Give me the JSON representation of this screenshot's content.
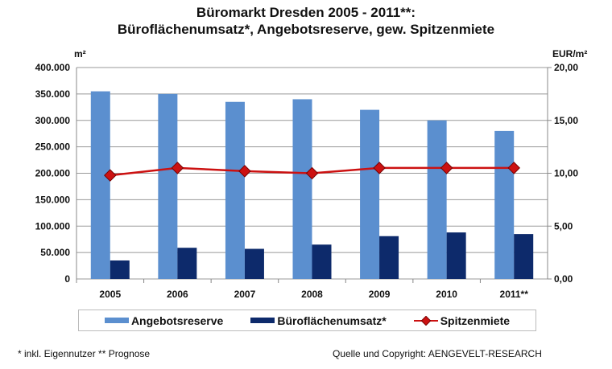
{
  "chart_data": {
    "type": "bar",
    "title": "Büromarkt Dresden 2005 - 2011**:",
    "subtitle": "Büroflächenumsatz*, Angebotsreserve, gew. Spitzenmiete",
    "ylabel": "m²",
    "y2label": "EUR/m²",
    "categories": [
      "2005",
      "2006",
      "2007",
      "2008",
      "2009",
      "2010",
      "2011**"
    ],
    "ylim": [
      0,
      400000
    ],
    "y2lim": [
      0,
      20
    ],
    "yticks": [
      "0",
      "50.000",
      "100.000",
      "150.000",
      "200.000",
      "250.000",
      "300.000",
      "350.000",
      "400.000"
    ],
    "y2ticks": [
      "0,00",
      "5,00",
      "10,00",
      "15,00",
      "20,00"
    ],
    "grid": true,
    "legend_position": "bottom",
    "series": [
      {
        "name": "Angebotsreserve",
        "type": "bar",
        "axis": "left",
        "color": "#5b8fcf",
        "values": [
          355000,
          350000,
          335000,
          340000,
          320000,
          300000,
          280000
        ]
      },
      {
        "name": "Büroflächenumsatz*",
        "type": "bar",
        "axis": "left",
        "color": "#0d2a6b",
        "values": [
          35000,
          59000,
          57000,
          65000,
          81000,
          88000,
          85000
        ]
      },
      {
        "name": "Spitzenmiete",
        "type": "line",
        "axis": "right",
        "color": "#cc1111",
        "values": [
          9.8,
          10.5,
          10.2,
          10.0,
          10.5,
          10.5,
          10.5
        ]
      }
    ]
  },
  "footnotes": {
    "left": "* inkl. Eigennutzer  ** Prognose",
    "right": "Quelle und Copyright: AENGEVELT-RESEARCH"
  }
}
